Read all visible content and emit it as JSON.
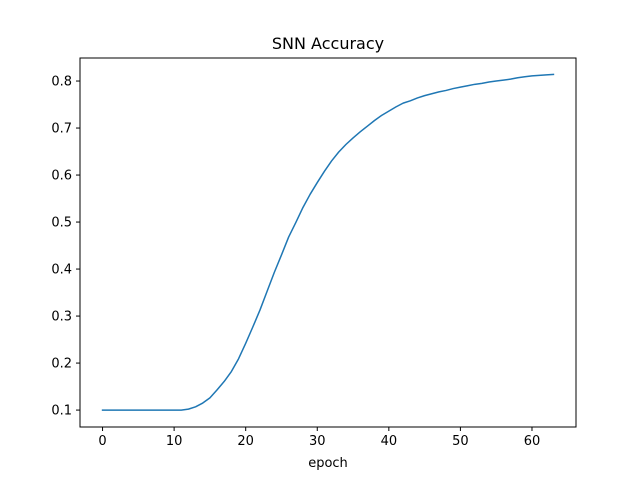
{
  "chart_data": {
    "type": "line",
    "title": "SNN Accuracy",
    "xlabel": "epoch",
    "ylabel": "",
    "xlim": [
      -3.15,
      66.15
    ],
    "ylim": [
      0.064,
      0.849
    ],
    "xticks": [
      0,
      10,
      20,
      30,
      40,
      50,
      60
    ],
    "yticks": [
      0.1,
      0.2,
      0.3,
      0.4,
      0.5,
      0.6,
      0.7,
      0.8
    ],
    "grid": false,
    "line_color": "#1f77b4",
    "series": [
      {
        "x": [
          0,
          1,
          2,
          3,
          4,
          5,
          6,
          7,
          8,
          9,
          10,
          11,
          12,
          13,
          14,
          15,
          16,
          17,
          18,
          19,
          20,
          21,
          22,
          23,
          24,
          25,
          26,
          27,
          28,
          29,
          30,
          31,
          32,
          33,
          34,
          35,
          36,
          37,
          38,
          39,
          40,
          41,
          42,
          43,
          44,
          45,
          46,
          47,
          48,
          49,
          50,
          51,
          52,
          53,
          54,
          55,
          56,
          57,
          58,
          59,
          60,
          61,
          62,
          63
        ],
        "values": [
          0.1,
          0.1,
          0.1,
          0.1,
          0.1,
          0.1,
          0.1,
          0.1,
          0.1,
          0.1,
          0.1,
          0.1,
          0.102,
          0.107,
          0.115,
          0.126,
          0.143,
          0.161,
          0.182,
          0.209,
          0.242,
          0.277,
          0.313,
          0.353,
          0.393,
          0.43,
          0.468,
          0.499,
          0.531,
          0.559,
          0.584,
          0.608,
          0.63,
          0.649,
          0.665,
          0.679,
          0.692,
          0.704,
          0.716,
          0.727,
          0.736,
          0.745,
          0.753,
          0.758,
          0.764,
          0.769,
          0.773,
          0.777,
          0.78,
          0.784,
          0.787,
          0.79,
          0.793,
          0.795,
          0.798,
          0.8,
          0.802,
          0.804,
          0.807,
          0.809,
          0.811,
          0.812,
          0.813,
          0.814
        ]
      }
    ]
  }
}
